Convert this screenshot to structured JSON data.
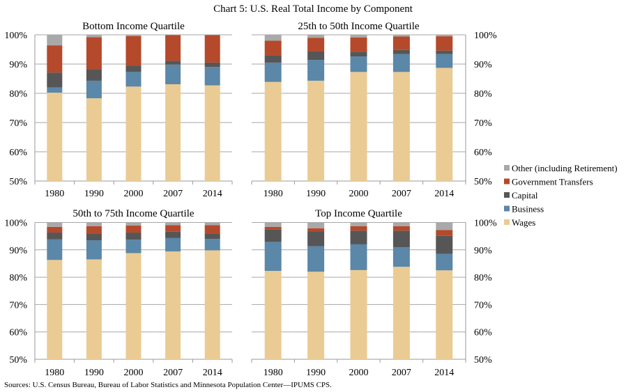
{
  "chart_data": {
    "type": "bar",
    "stacked": true,
    "title": "Chart 5: U.S. Real Total Income by Component",
    "source": "Sources: U.S. Census Bureau, Bureau of Labor Statistics and Minnesota Population Center—IPUMS CPS.",
    "categories": [
      "1980",
      "1990",
      "2000",
      "2007",
      "2014"
    ],
    "ylim": [
      50,
      100
    ],
    "yticks": [
      "50%",
      "60%",
      "70%",
      "80%",
      "90%",
      "100%"
    ],
    "grid": true,
    "legend": {
      "placement": "right-middle",
      "entries": [
        {
          "name": "Other (including Retirement)",
          "color": "#a9a9a9"
        },
        {
          "name": "Government Transfers",
          "color": "#b5492b"
        },
        {
          "name": "Capital",
          "color": "#565656"
        },
        {
          "name": "Business",
          "color": "#5b87a8"
        },
        {
          "name": "Wages",
          "color": "#ebcb94"
        }
      ]
    },
    "series_order": [
      "Wages",
      "Business",
      "Capital",
      "Government Transfers",
      "Other (including Retirement)"
    ],
    "panels": [
      {
        "title": "Bottom Income Quartile",
        "y_axis_side": "left",
        "series": [
          {
            "name": "Wages",
            "values": [
              80.2,
              78.3,
              82.3,
              83.1,
              82.7
            ]
          },
          {
            "name": "Business",
            "values": [
              1.8,
              6.0,
              5.0,
              6.7,
              6.3
            ]
          },
          {
            "name": "Capital",
            "values": [
              5.1,
              4.0,
              2.2,
              1.3,
              1.5
            ]
          },
          {
            "name": "Government Transfers",
            "values": [
              9.3,
              10.9,
              10.1,
              8.8,
              9.4
            ]
          },
          {
            "name": "Other (including Retirement)",
            "values": [
              3.6,
              0.8,
              0.4,
              0.1,
              0.1
            ]
          }
        ]
      },
      {
        "title": "25th to 50th Income Quartile",
        "y_axis_side": "right",
        "series": [
          {
            "name": "Wages",
            "values": [
              83.9,
              84.3,
              87.3,
              87.3,
              88.7
            ]
          },
          {
            "name": "Business",
            "values": [
              6.6,
              7.1,
              5.3,
              6.1,
              4.7
            ]
          },
          {
            "name": "Capital",
            "values": [
              2.5,
              2.9,
              1.6,
              1.4,
              1.2
            ]
          },
          {
            "name": "Government Transfers",
            "values": [
              5.0,
              4.7,
              4.9,
              4.6,
              4.9
            ]
          },
          {
            "name": "Other (including Retirement)",
            "values": [
              2.0,
              1.0,
              0.9,
              0.6,
              0.5
            ]
          }
        ]
      },
      {
        "title": "50th to 75th Income Quartile",
        "y_axis_side": "left",
        "series": [
          {
            "name": "Wages",
            "values": [
              86.3,
              86.5,
              88.8,
              89.4,
              89.8
            ]
          },
          {
            "name": "Business",
            "values": [
              7.5,
              7.0,
              4.9,
              4.9,
              4.2
            ]
          },
          {
            "name": "Capital",
            "values": [
              2.5,
              2.3,
              2.6,
              2.3,
              1.8
            ]
          },
          {
            "name": "Government Transfers",
            "values": [
              2.1,
              2.8,
              2.6,
              2.4,
              3.2
            ]
          },
          {
            "name": "Other (including Retirement)",
            "values": [
              1.6,
              1.4,
              1.1,
              1.0,
              1.0
            ]
          }
        ]
      },
      {
        "title": "Top Income Quartile",
        "y_axis_side": "right",
        "series": [
          {
            "name": "Wages",
            "values": [
              82.3,
              82.0,
              82.6,
              83.8,
              82.5
            ]
          },
          {
            "name": "Business",
            "values": [
              10.6,
              9.3,
              9.4,
              7.1,
              6.0
            ]
          },
          {
            "name": "Capital",
            "values": [
              4.6,
              5.4,
              5.0,
              6.1,
              6.6
            ]
          },
          {
            "name": "Government Transfers",
            "values": [
              0.9,
              1.2,
              1.6,
              1.6,
              2.1
            ]
          },
          {
            "name": "Other (including Retirement)",
            "values": [
              1.6,
              2.1,
              1.4,
              1.4,
              2.8
            ]
          }
        ]
      }
    ]
  }
}
